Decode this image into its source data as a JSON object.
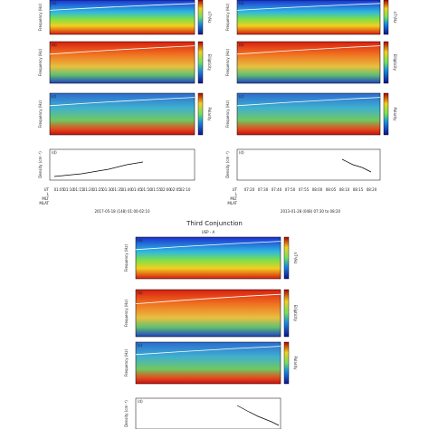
{
  "section_title": "Third Conjunction",
  "bottom_title": "USP - A",
  "panel_labels": [
    "(a)",
    "(b)",
    "(c)",
    "(d)"
  ],
  "axis_labels": {
    "frequency": "Frequency (Hz)",
    "ellipticity": "Ellipticity",
    "polarity": "Polarity",
    "density": "Density (cm⁻³)",
    "power": "nT²/Hz"
  },
  "row_names": [
    "UT",
    "L",
    "MLT",
    "MLAT"
  ],
  "left_times": [
    "01:05",
    "01:10",
    "01:15",
    "01:20",
    "01:25",
    "01:30",
    "01:35",
    "01:40",
    "01:45",
    "01:50",
    "01:55",
    "02:00",
    "02:05",
    "02:10"
  ],
  "right_times": [
    "07:20",
    "07:30",
    "07:40",
    "07:50",
    "07:55",
    "08:00",
    "08:05",
    "08:10",
    "08:15",
    "08:20"
  ],
  "left_caption": "2017-05-18 (148) 01:00-02:10",
  "right_caption": "2013-01-28 (048) 07:30 to 08:20"
}
